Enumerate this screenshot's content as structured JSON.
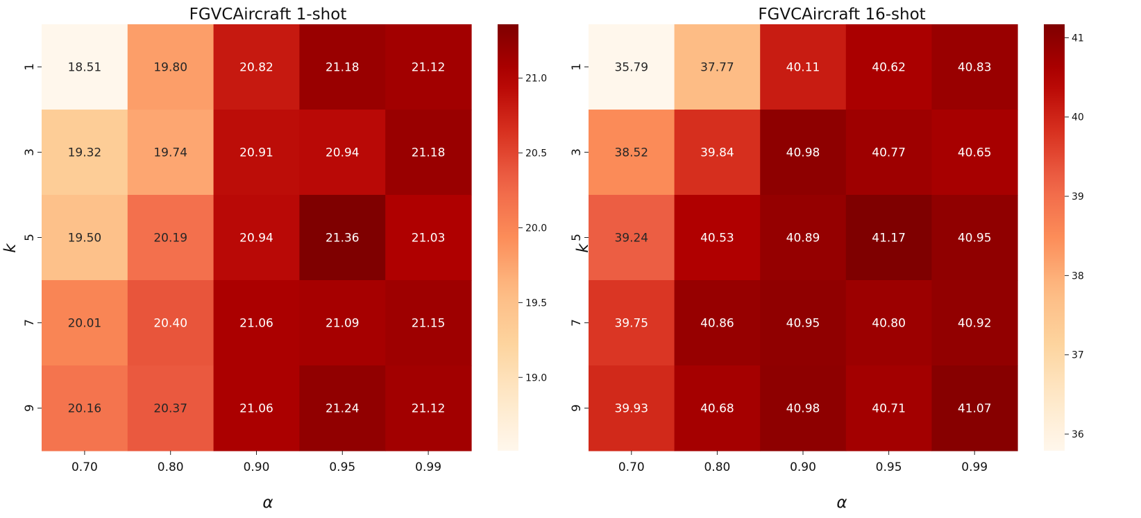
{
  "chart_data": [
    {
      "type": "heatmap",
      "title": "FGVCAircraft 1-shot",
      "xlabel": "α",
      "ylabel": "k",
      "x_categories": [
        "0.70",
        "0.80",
        "0.90",
        "0.95",
        "0.99"
      ],
      "y_categories": [
        "1",
        "3",
        "5",
        "7",
        "9"
      ],
      "values": [
        [
          18.51,
          19.8,
          20.82,
          21.18,
          21.12
        ],
        [
          19.32,
          19.74,
          20.91,
          20.94,
          21.18
        ],
        [
          19.5,
          20.19,
          20.94,
          21.36,
          21.03
        ],
        [
          20.01,
          20.4,
          21.06,
          21.09,
          21.15
        ],
        [
          20.16,
          20.37,
          21.06,
          21.24,
          21.12
        ]
      ],
      "value_labels": [
        [
          "18.51",
          "19.80",
          "20.82",
          "21.18",
          "21.12"
        ],
        [
          "19.32",
          "19.74",
          "20.91",
          "20.94",
          "21.18"
        ],
        [
          "19.50",
          "20.19",
          "20.94",
          "21.36",
          "21.03"
        ],
        [
          "20.01",
          "20.40",
          "21.06",
          "21.09",
          "21.15"
        ],
        [
          "20.16",
          "20.37",
          "21.06",
          "21.24",
          "21.12"
        ]
      ],
      "colormap": "OrRd",
      "colorbar": {
        "min": 18.51,
        "max": 21.36,
        "ticks": [
          19.0,
          19.5,
          20.0,
          20.5,
          21.0
        ],
        "tick_labels": [
          "19.0",
          "19.5",
          "20.0",
          "20.5",
          "21.0"
        ]
      }
    },
    {
      "type": "heatmap",
      "title": "FGVCAircraft 16-shot",
      "xlabel": "α",
      "ylabel": "k",
      "x_categories": [
        "0.70",
        "0.80",
        "0.90",
        "0.95",
        "0.99"
      ],
      "y_categories": [
        "1",
        "3",
        "5",
        "7",
        "9"
      ],
      "values": [
        [
          35.79,
          37.77,
          40.11,
          40.62,
          40.83
        ],
        [
          38.52,
          39.84,
          40.98,
          40.77,
          40.65
        ],
        [
          39.24,
          40.53,
          40.89,
          41.17,
          40.95
        ],
        [
          39.75,
          40.86,
          40.95,
          40.8,
          40.92
        ],
        [
          39.93,
          40.68,
          40.98,
          40.71,
          41.07
        ]
      ],
      "value_labels": [
        [
          "35.79",
          "37.77",
          "40.11",
          "40.62",
          "40.83"
        ],
        [
          "38.52",
          "39.84",
          "40.98",
          "40.77",
          "40.65"
        ],
        [
          "39.24",
          "40.53",
          "40.89",
          "41.17",
          "40.95"
        ],
        [
          "39.75",
          "40.86",
          "40.95",
          "40.80",
          "40.92"
        ],
        [
          "39.93",
          "40.68",
          "40.98",
          "40.71",
          "41.07"
        ]
      ],
      "colormap": "OrRd",
      "colorbar": {
        "min": 35.79,
        "max": 41.17,
        "ticks": [
          36,
          37,
          38,
          39,
          40,
          41
        ],
        "tick_labels": [
          "36",
          "37",
          "38",
          "39",
          "40",
          "41"
        ]
      }
    }
  ]
}
